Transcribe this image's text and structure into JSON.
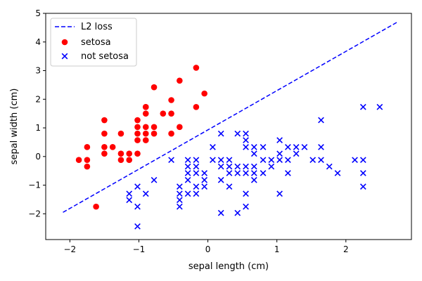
{
  "chart_data": {
    "type": "scatter",
    "xlabel": "sepal length (cm)",
    "ylabel": "sepal width (cm)",
    "xlim": [
      -2.35,
      2.95
    ],
    "ylim": [
      -2.9,
      5.0
    ],
    "xticks": [
      -2,
      -1,
      0,
      1,
      2
    ],
    "yticks": [
      -2,
      -1,
      0,
      1,
      2,
      3,
      4,
      5
    ],
    "grid": false,
    "legend_position": "top-left",
    "line": {
      "name": "L2 loss",
      "color": "#0000ff",
      "style": "dashed",
      "x": [
        -2.1,
        2.75
      ],
      "y": [
        -1.95,
        4.7
      ]
    },
    "series": [
      {
        "name": "setosa",
        "marker": "circle",
        "color": "#ff0000",
        "points": [
          [
            -1.87,
            -0.12
          ],
          [
            -1.75,
            -0.12
          ],
          [
            -1.75,
            -0.35
          ],
          [
            -1.75,
            0.33
          ],
          [
            -1.62,
            -1.75
          ],
          [
            -1.5,
            0.1
          ],
          [
            -1.5,
            0.33
          ],
          [
            -1.5,
            0.8
          ],
          [
            -1.5,
            1.27
          ],
          [
            -1.38,
            0.33
          ],
          [
            -1.26,
            -0.12
          ],
          [
            -1.26,
            0.1
          ],
          [
            -1.26,
            0.8
          ],
          [
            -1.14,
            -0.12
          ],
          [
            -1.14,
            0.1
          ],
          [
            -1.02,
            0.1
          ],
          [
            -1.02,
            0.57
          ],
          [
            -1.02,
            0.8
          ],
          [
            -1.02,
            1.03
          ],
          [
            -1.02,
            1.27
          ],
          [
            -0.9,
            0.57
          ],
          [
            -0.9,
            0.8
          ],
          [
            -0.9,
            1.03
          ],
          [
            -0.9,
            1.5
          ],
          [
            -0.9,
            1.73
          ],
          [
            -0.9,
            1.73
          ],
          [
            -0.78,
            0.8
          ],
          [
            -0.78,
            1.03
          ],
          [
            -0.78,
            2.42
          ],
          [
            -0.65,
            1.5
          ],
          [
            -0.53,
            0.8
          ],
          [
            -0.53,
            1.5
          ],
          [
            -0.53,
            1.97
          ],
          [
            -0.41,
            1.03
          ],
          [
            -0.41,
            2.65
          ],
          [
            -0.17,
            1.73
          ],
          [
            -0.17,
            3.1
          ],
          [
            -0.05,
            2.2
          ]
        ]
      },
      {
        "name": "not setosa",
        "marker": "x",
        "color": "#0000ff",
        "points": [
          [
            -1.14,
            -1.3
          ],
          [
            -1.14,
            -1.52
          ],
          [
            -1.02,
            -2.44
          ],
          [
            -1.02,
            -1.75
          ],
          [
            -1.02,
            -1.05
          ],
          [
            -0.9,
            -1.3
          ],
          [
            -0.78,
            -0.82
          ],
          [
            -0.53,
            -0.12
          ],
          [
            -0.41,
            -1.05
          ],
          [
            -0.41,
            -1.3
          ],
          [
            -0.41,
            -1.52
          ],
          [
            -0.41,
            -1.75
          ],
          [
            -0.29,
            -0.12
          ],
          [
            -0.29,
            -0.35
          ],
          [
            -0.29,
            -0.58
          ],
          [
            -0.29,
            -0.82
          ],
          [
            -0.29,
            -1.3
          ],
          [
            -0.17,
            -0.12
          ],
          [
            -0.17,
            -0.35
          ],
          [
            -0.17,
            -0.58
          ],
          [
            -0.17,
            -1.05
          ],
          [
            -0.17,
            -1.3
          ],
          [
            -0.05,
            -0.58
          ],
          [
            -0.05,
            -0.82
          ],
          [
            -0.05,
            -1.05
          ],
          [
            0.07,
            0.33
          ],
          [
            0.07,
            -0.12
          ],
          [
            0.19,
            0.8
          ],
          [
            0.19,
            -0.12
          ],
          [
            0.19,
            -0.35
          ],
          [
            0.19,
            -0.82
          ],
          [
            0.19,
            -1.97
          ],
          [
            0.31,
            -0.12
          ],
          [
            0.31,
            -0.35
          ],
          [
            0.31,
            -0.58
          ],
          [
            0.31,
            -1.05
          ],
          [
            0.43,
            0.8
          ],
          [
            0.43,
            -0.35
          ],
          [
            0.43,
            -0.58
          ],
          [
            0.43,
            -1.97
          ],
          [
            0.55,
            0.8
          ],
          [
            0.55,
            0.57
          ],
          [
            0.55,
            0.33
          ],
          [
            0.55,
            -0.35
          ],
          [
            0.55,
            -0.58
          ],
          [
            0.55,
            -1.3
          ],
          [
            0.55,
            -1.75
          ],
          [
            0.67,
            0.33
          ],
          [
            0.67,
            0.1
          ],
          [
            0.67,
            -0.35
          ],
          [
            0.67,
            -0.58
          ],
          [
            0.67,
            -0.82
          ],
          [
            0.8,
            0.33
          ],
          [
            0.8,
            -0.12
          ],
          [
            0.8,
            -0.58
          ],
          [
            0.92,
            -0.12
          ],
          [
            0.92,
            -0.35
          ],
          [
            1.04,
            0.57
          ],
          [
            1.04,
            0.1
          ],
          [
            1.04,
            -0.12
          ],
          [
            1.04,
            -1.3
          ],
          [
            1.16,
            0.33
          ],
          [
            1.16,
            -0.12
          ],
          [
            1.16,
            -0.58
          ],
          [
            1.28,
            0.33
          ],
          [
            1.28,
            0.1
          ],
          [
            1.4,
            0.33
          ],
          [
            1.52,
            -0.12
          ],
          [
            1.64,
            1.27
          ],
          [
            1.64,
            0.33
          ],
          [
            1.64,
            -0.12
          ],
          [
            1.76,
            -0.35
          ],
          [
            1.88,
            -0.58
          ],
          [
            2.13,
            -0.12
          ],
          [
            2.25,
            1.73
          ],
          [
            2.25,
            -0.12
          ],
          [
            2.25,
            -0.58
          ],
          [
            2.25,
            -1.05
          ],
          [
            2.49,
            1.73
          ]
        ]
      }
    ]
  }
}
